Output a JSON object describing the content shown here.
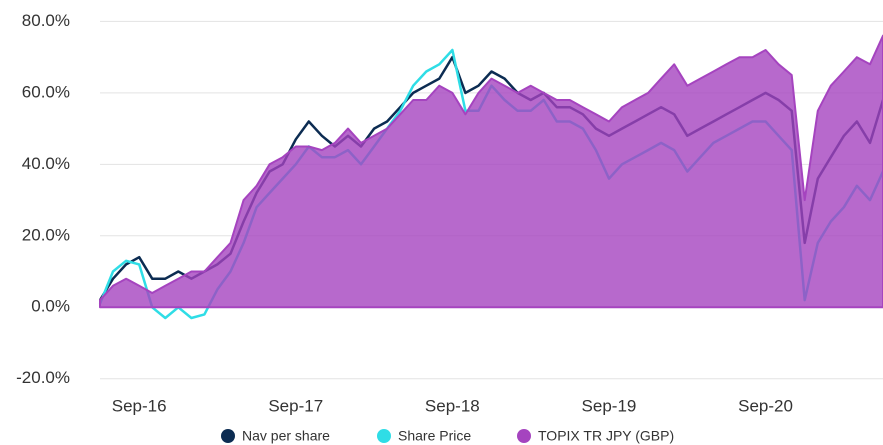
{
  "chart_data": {
    "type": "line-area",
    "categories": [
      "Jun-16",
      "Jul-16",
      "Aug-16",
      "Sep-16",
      "Oct-16",
      "Nov-16",
      "Dec-16",
      "Jan-17",
      "Feb-17",
      "Mar-17",
      "Apr-17",
      "May-17",
      "Jun-17",
      "Jul-17",
      "Aug-17",
      "Sep-17",
      "Oct-17",
      "Nov-17",
      "Dec-17",
      "Jan-18",
      "Feb-18",
      "Mar-18",
      "Apr-18",
      "May-18",
      "Jun-18",
      "Jul-18",
      "Aug-18",
      "Sep-18",
      "Oct-18",
      "Nov-18",
      "Dec-18",
      "Jan-19",
      "Feb-19",
      "Mar-19",
      "Apr-19",
      "May-19",
      "Jun-19",
      "Jul-19",
      "Aug-19",
      "Sep-19",
      "Oct-19",
      "Nov-19",
      "Dec-19",
      "Jan-20",
      "Feb-20",
      "Mar-20",
      "Apr-20",
      "May-20",
      "Jun-20",
      "Jul-20",
      "Aug-20",
      "Sep-20",
      "Oct-20",
      "Nov-20",
      "Dec-20",
      "Jan-21",
      "Feb-21",
      "Mar-21",
      "Apr-21",
      "May-21",
      "Jun-21"
    ],
    "series": [
      {
        "name": "Nav per share",
        "color": "#0c2c52",
        "kind": "line",
        "values": [
          2,
          8,
          12,
          14,
          8,
          8,
          10,
          8,
          10,
          12,
          15,
          24,
          32,
          38,
          40,
          47,
          52,
          48,
          45,
          48,
          45,
          50,
          52,
          56,
          60,
          62,
          64,
          70,
          60,
          62,
          66,
          64,
          60,
          58,
          60,
          56,
          56,
          54,
          50,
          48,
          50,
          52,
          54,
          56,
          54,
          48,
          50,
          52,
          54,
          56,
          58,
          60,
          58,
          55,
          18,
          36,
          42,
          48,
          52,
          46,
          58
        ]
      },
      {
        "name": "Share Price",
        "color": "#2fdde6",
        "kind": "line",
        "values": [
          1,
          10,
          13,
          12,
          0,
          -3,
          0,
          -3,
          -2,
          5,
          10,
          18,
          28,
          32,
          36,
          40,
          45,
          42,
          42,
          44,
          40,
          45,
          50,
          55,
          62,
          66,
          68,
          72,
          55,
          55,
          62,
          58,
          55,
          55,
          58,
          52,
          52,
          50,
          44,
          36,
          40,
          42,
          44,
          46,
          44,
          38,
          42,
          46,
          48,
          50,
          52,
          52,
          48,
          44,
          2,
          18,
          24,
          28,
          34,
          30,
          38
        ]
      },
      {
        "name": "TOPIX TR JPY (GBP)",
        "color": "#a544bf",
        "kind": "area",
        "values": [
          2,
          6,
          8,
          6,
          4,
          6,
          8,
          10,
          10,
          14,
          18,
          30,
          34,
          40,
          42,
          45,
          45,
          44,
          46,
          50,
          46,
          48,
          50,
          54,
          58,
          58,
          62,
          60,
          54,
          60,
          64,
          62,
          60,
          62,
          60,
          58,
          58,
          56,
          54,
          52,
          56,
          58,
          60,
          64,
          68,
          62,
          64,
          66,
          68,
          70,
          70,
          72,
          68,
          65,
          30,
          55,
          62,
          66,
          70,
          68,
          76
        ]
      }
    ],
    "xticks": [
      "Sep-16",
      "Sep-17",
      "Sep-18",
      "Sep-19",
      "Sep-20"
    ],
    "ylim": [
      -24,
      86
    ],
    "yticks": [
      {
        "value": -20,
        "label": "-20.0%"
      },
      {
        "value": 0,
        "label": "0.0%"
      },
      {
        "value": 20,
        "label": "20.0%"
      },
      {
        "value": 40,
        "label": "40.0%"
      },
      {
        "value": 60,
        "label": "60.0%"
      },
      {
        "value": 80,
        "label": "80.0%"
      }
    ],
    "grid": true
  }
}
